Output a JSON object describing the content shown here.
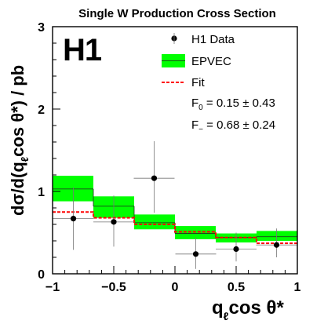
{
  "chart_data": {
    "type": "scatter",
    "title": "Single W Production Cross Section",
    "experiment_label": "H1",
    "xlabel": "qℓcos θ*",
    "ylabel": "dσ/d(qℓcos θ*) / pb",
    "xlim": [
      -1,
      1
    ],
    "ylim": [
      0,
      3
    ],
    "x_ticks": [
      "−1",
      "−0.5",
      "0",
      "0.5",
      "1"
    ],
    "x_tick_values": [
      -1,
      -0.5,
      0,
      0.5,
      1
    ],
    "y_ticks": [
      "0",
      "1",
      "2",
      "3"
    ],
    "y_tick_values": [
      0,
      1,
      2,
      3
    ],
    "bins": [
      [
        -1,
        -0.6667
      ],
      [
        -0.6667,
        -0.3333
      ],
      [
        -0.3333,
        0
      ],
      [
        0,
        0.3333
      ],
      [
        0.3333,
        0.6667
      ],
      [
        0.6667,
        1
      ]
    ],
    "series": [
      {
        "name": "H1 Data",
        "kind": "points",
        "color": "#000000",
        "x": [
          -0.83,
          -0.5,
          -0.17,
          0.17,
          0.5,
          0.83
        ],
        "y": [
          0.67,
          0.63,
          1.16,
          0.24,
          0.3,
          0.35
        ],
        "y_err_low": [
          0.38,
          0.3,
          0.42,
          0.18,
          0.15,
          0.15
        ],
        "y_err_high": [
          0.38,
          0.32,
          0.45,
          0.2,
          0.2,
          0.2
        ],
        "x_err": 0.1667
      },
      {
        "name": "EPVEC",
        "kind": "band",
        "color": "#00ff00",
        "center": [
          1.03,
          0.82,
          0.62,
          0.49,
          0.44,
          0.45
        ],
        "low": [
          0.88,
          0.68,
          0.54,
          0.42,
          0.38,
          0.4
        ],
        "high": [
          1.19,
          0.94,
          0.72,
          0.58,
          0.49,
          0.52
        ]
      },
      {
        "name": "Fit",
        "kind": "step",
        "color": "#ff0000",
        "values": [
          0.75,
          0.68,
          0.6,
          0.51,
          0.44,
          0.37
        ]
      }
    ],
    "fit_results": [
      {
        "label": "F",
        "sub": "0",
        "value": "= 0.15 ± 0.43"
      },
      {
        "label": "F",
        "sub": "−",
        "value": "= 0.68 ± 0.24"
      }
    ],
    "legend_position": "top-right",
    "grid": false
  }
}
